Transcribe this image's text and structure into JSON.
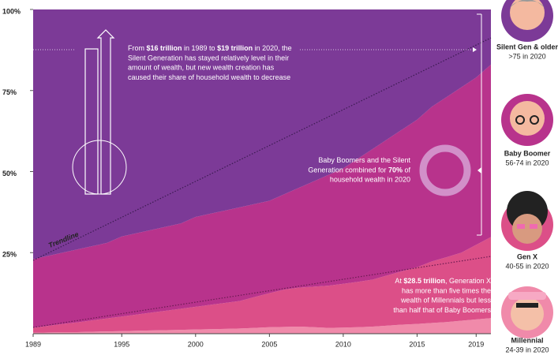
{
  "chart_data": {
    "type": "stacked-area",
    "x": [
      1989,
      1990,
      1991,
      1992,
      1993,
      1994,
      1995,
      1996,
      1997,
      1998,
      1999,
      2000,
      2001,
      2002,
      2003,
      2004,
      2005,
      2006,
      2007,
      2008,
      2009,
      2010,
      2011,
      2012,
      2013,
      2014,
      2015,
      2016,
      2017,
      2018,
      2019,
      2020
    ],
    "xlim": [
      1989,
      2020
    ],
    "xticks": [
      1989,
      1995,
      2000,
      2005,
      2010,
      2015,
      2019
    ],
    "ylim": [
      0,
      100
    ],
    "yticks": [
      {
        "value": 25,
        "label": "25%"
      },
      {
        "value": 50,
        "label": "50%"
      },
      {
        "value": 75,
        "label": "75%"
      },
      {
        "value": 100,
        "label": "100%"
      }
    ],
    "series": [
      {
        "name": "Millennial",
        "age_label": "24-39 in 2020",
        "color": "#f08aaa",
        "values": [
          0.3,
          0.4,
          0.5,
          0.5,
          0.6,
          0.7,
          0.8,
          0.9,
          1.0,
          1.1,
          1.2,
          1.3,
          1.4,
          1.5,
          1.6,
          1.8,
          2.0,
          2.1,
          2.2,
          2.0,
          1.8,
          1.9,
          2.0,
          2.2,
          2.5,
          2.8,
          3.0,
          3.3,
          3.6,
          4.0,
          4.4,
          4.8
        ]
      },
      {
        "name": "Gen X",
        "age_label": "40-55 in 2020",
        "color": "#dc4f88",
        "values": [
          1.5,
          2,
          2.5,
          3,
          3.5,
          4,
          4.5,
          5,
          5.5,
          6,
          6.5,
          7,
          7.5,
          8,
          8.5,
          9.5,
          10.5,
          11.5,
          12,
          12.5,
          13,
          13.5,
          14,
          14.5,
          15.5,
          16.5,
          17.5,
          19,
          20,
          21,
          23,
          25
        ]
      },
      {
        "name": "Baby Boomer",
        "age_label": "56-74 in 2020",
        "color": "#b8338c",
        "values": [
          21.2,
          21.6,
          22.0,
          22.5,
          22.9,
          23.3,
          24.7,
          25.1,
          25.5,
          25.9,
          26.3,
          27.7,
          28.1,
          28.5,
          28.9,
          28.7,
          28.5,
          29.4,
          30.8,
          32.5,
          34.2,
          35.6,
          38.0,
          40.3,
          42.0,
          43.7,
          45.5,
          47.7,
          49.4,
          51.0,
          51.6,
          53.2
        ]
      },
      {
        "name": "Silent Gen & older",
        "age_label": ">75 in 2020",
        "color": "#7c3a97",
        "values": [
          77,
          76,
          75,
          74,
          73,
          72,
          70,
          69,
          68,
          67,
          66,
          64,
          63,
          62,
          61,
          60,
          59,
          57,
          55,
          53,
          51,
          49,
          46,
          43,
          40,
          37,
          34,
          30,
          27,
          24,
          21,
          17
        ]
      }
    ],
    "trendline_label": "Trendline",
    "annotations": [
      {
        "lines": [
          [
            {
              "text": "From "
            },
            {
              "text": "$16 trillion",
              "bold": true
            },
            {
              "text": " in 1989 to "
            },
            {
              "text": "$19 trillion",
              "bold": true
            },
            {
              "text": " in 2020, the"
            }
          ],
          [
            {
              "text": "Silent Generation has stayed relatively level in their"
            }
          ],
          [
            {
              "text": "amount of wealth, but new wealth creation has"
            }
          ],
          [
            {
              "text": "caused their share of household wealth to decrease"
            }
          ]
        ]
      },
      {
        "lines": [
          [
            {
              "text": "Baby Boomers and the Silent"
            }
          ],
          [
            {
              "text": "Generation combined for "
            },
            {
              "text": "70%",
              "bold": true
            },
            {
              "text": " of"
            }
          ],
          [
            {
              "text": "household wealth in 2020"
            }
          ]
        ]
      },
      {
        "lines": [
          [
            {
              "text": "At "
            },
            {
              "text": "$28.5 trillion",
              "bold": true
            },
            {
              "text": ", Generation X"
            }
          ],
          [
            {
              "text": "has more than five times the"
            }
          ],
          [
            {
              "text": "wealth of Millennials but less"
            }
          ],
          [
            {
              "text": "than half that of Baby Boomers"
            }
          ]
        ]
      }
    ]
  }
}
